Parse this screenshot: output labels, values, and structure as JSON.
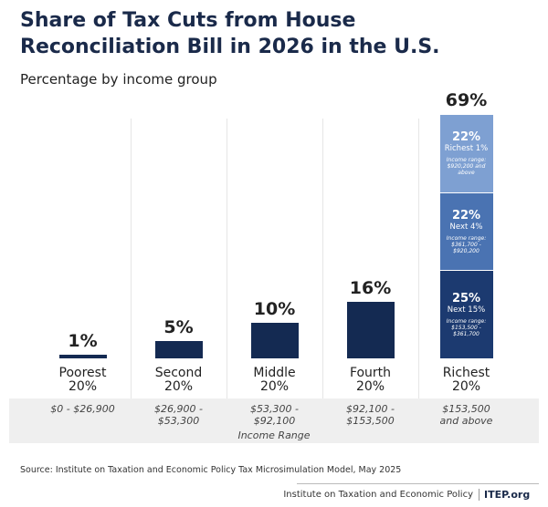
{
  "chart_data": {
    "type": "bar",
    "title": "Share of Tax Cuts from House Reconciliation Bill in 2026 in the U.S.",
    "subtitle": "Percentage by income group",
    "categories": [
      "Poorest 20%",
      "Second 20%",
      "Middle 20%",
      "Fourth 20%",
      "Richest 20%"
    ],
    "values": [
      1,
      5,
      10,
      16,
      69
    ],
    "value_labels": [
      "1%",
      "5%",
      "10%",
      "16%",
      "69%"
    ],
    "color": "#142a52",
    "income_ranges": [
      "$0 - $26,900",
      "$26,900 - $53,300",
      "$53,300 - $92,100",
      "$92,100 - $153,500",
      "$153,500 and above"
    ],
    "income_range_title": "Income Range",
    "segments": [
      {
        "name": "Next 15%",
        "value": 25,
        "value_label": "25%",
        "income_range": "Income range: $153,500 - $361,700",
        "color": "#1c3a70"
      },
      {
        "name": "Next 4%",
        "value": 22,
        "value_label": "22%",
        "income_range": "Income range: $361,700 - $920,200",
        "color": "#4a73b2"
      },
      {
        "name": "Richest 1%",
        "value": 22,
        "value_label": "22%",
        "income_range": "Income range: $920,200 and above",
        "color": "#7ea0d2"
      }
    ],
    "source": "Source: Institute on Taxation and Economic Policy Tax Microsimulation Model, May 2025",
    "footer_org": "Institute on Taxation and Economic Policy",
    "footer_logo": "ITEP.org"
  }
}
